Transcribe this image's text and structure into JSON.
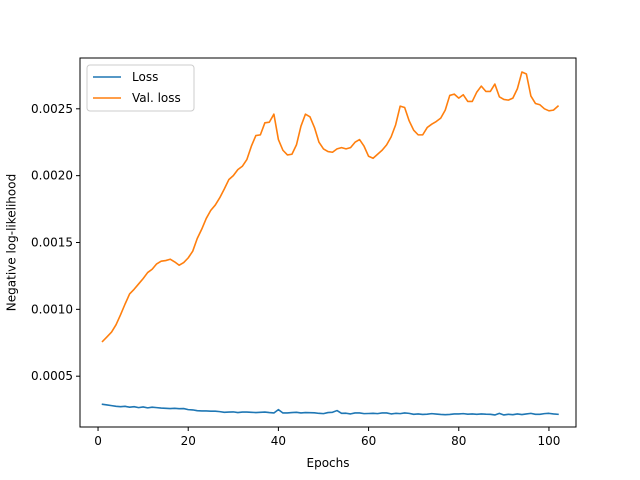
{
  "chart_data": {
    "type": "line",
    "title": "",
    "xlabel": "Epochs",
    "ylabel": "Negative log-likelihood",
    "xlim": [
      -4,
      106
    ],
    "ylim": [
      0.00012,
      0.00288
    ],
    "xticks": [
      0,
      20,
      40,
      60,
      80,
      100
    ],
    "yticks": [
      0.0005,
      0.001,
      0.0015,
      0.002,
      0.0025
    ],
    "ytick_labels": [
      "0.0005",
      "0.0010",
      "0.0015",
      "0.0020",
      "0.0025"
    ],
    "grid": false,
    "legend_position": "upper-left",
    "x": [
      1,
      2,
      3,
      4,
      5,
      6,
      7,
      8,
      9,
      10,
      11,
      12,
      13,
      14,
      15,
      16,
      17,
      18,
      19,
      20,
      21,
      22,
      23,
      24,
      25,
      26,
      27,
      28,
      29,
      30,
      31,
      32,
      33,
      34,
      35,
      36,
      37,
      38,
      39,
      40,
      41,
      42,
      43,
      44,
      45,
      46,
      47,
      48,
      49,
      50,
      51,
      52,
      53,
      54,
      55,
      56,
      57,
      58,
      59,
      60,
      61,
      62,
      63,
      64,
      65,
      66,
      67,
      68,
      69,
      70,
      71,
      72,
      73,
      74,
      75,
      76,
      77,
      78,
      79,
      80,
      81,
      82,
      83,
      84,
      85,
      86,
      87,
      88,
      89,
      90,
      91,
      92,
      93,
      94,
      95,
      96,
      97,
      98,
      99,
      100,
      101,
      102
    ],
    "series": [
      {
        "name": "Loss",
        "color": "#1f77b4",
        "values": [
          0.00029,
          0.000285,
          0.00028,
          0.000275,
          0.000272,
          0.000275,
          0.000268,
          0.000272,
          0.000265,
          0.00027,
          0.000263,
          0.000268,
          0.000265,
          0.000262,
          0.00026,
          0.000258,
          0.00026,
          0.000257,
          0.000258,
          0.00025,
          0.000248,
          0.000242,
          0.00024,
          0.00024,
          0.000238,
          0.000238,
          0.000235,
          0.00023,
          0.000232,
          0.000233,
          0.000228,
          0.000232,
          0.000232,
          0.00023,
          0.000228,
          0.00023,
          0.000232,
          0.000228,
          0.000225,
          0.00025,
          0.000225,
          0.000225,
          0.000228,
          0.00023,
          0.000225,
          0.000228,
          0.000227,
          0.000226,
          0.000222,
          0.00022,
          0.000228,
          0.00023,
          0.000243,
          0.000222,
          0.000223,
          0.000218,
          0.000225,
          0.000225,
          0.00022,
          0.000221,
          0.000222,
          0.00022,
          0.000225,
          0.000225,
          0.000218,
          0.000222,
          0.00022,
          0.000225,
          0.000222,
          0.000215,
          0.000218,
          0.000214,
          0.000216,
          0.00022,
          0.000217,
          0.000214,
          0.000212,
          0.000214,
          0.000218,
          0.000218,
          0.00022,
          0.000216,
          0.000218,
          0.000215,
          0.000218,
          0.000216,
          0.000215,
          0.00021,
          0.000222,
          0.00021,
          0.000215,
          0.000212,
          0.000218,
          0.000213,
          0.000218,
          0.000222,
          0.000215,
          0.000215,
          0.00022,
          0.000222,
          0.000218,
          0.000215
        ]
      },
      {
        "name": "Val. loss",
        "color": "#ff7f0e",
        "values": [
          0.00076,
          0.000795,
          0.00083,
          0.000885,
          0.00096,
          0.00104,
          0.001115,
          0.00115,
          0.00119,
          0.00123,
          0.001275,
          0.0013,
          0.00134,
          0.00136,
          0.001365,
          0.001375,
          0.001355,
          0.00133,
          0.00135,
          0.001385,
          0.001435,
          0.00153,
          0.0016,
          0.00168,
          0.00174,
          0.00178,
          0.001835,
          0.0019,
          0.00197,
          0.002,
          0.002045,
          0.00207,
          0.00212,
          0.00222,
          0.0023,
          0.002305,
          0.002395,
          0.0024,
          0.00246,
          0.00227,
          0.00219,
          0.002155,
          0.00216,
          0.00223,
          0.00237,
          0.00246,
          0.00244,
          0.00236,
          0.00225,
          0.0022,
          0.00218,
          0.002175,
          0.0022,
          0.00221,
          0.0022,
          0.00221,
          0.00225,
          0.00227,
          0.00222,
          0.002145,
          0.00213,
          0.00216,
          0.00219,
          0.00223,
          0.00229,
          0.00238,
          0.00252,
          0.00251,
          0.00241,
          0.00234,
          0.002305,
          0.002305,
          0.00236,
          0.002385,
          0.002405,
          0.00243,
          0.00249,
          0.0026,
          0.00261,
          0.00258,
          0.002605,
          0.002555,
          0.002555,
          0.002625,
          0.00267,
          0.00263,
          0.00263,
          0.002685,
          0.00259,
          0.00257,
          0.002565,
          0.00258,
          0.00265,
          0.002775,
          0.00276,
          0.002595,
          0.00254,
          0.00253,
          0.0025,
          0.002485,
          0.00249,
          0.00252
        ]
      }
    ]
  }
}
